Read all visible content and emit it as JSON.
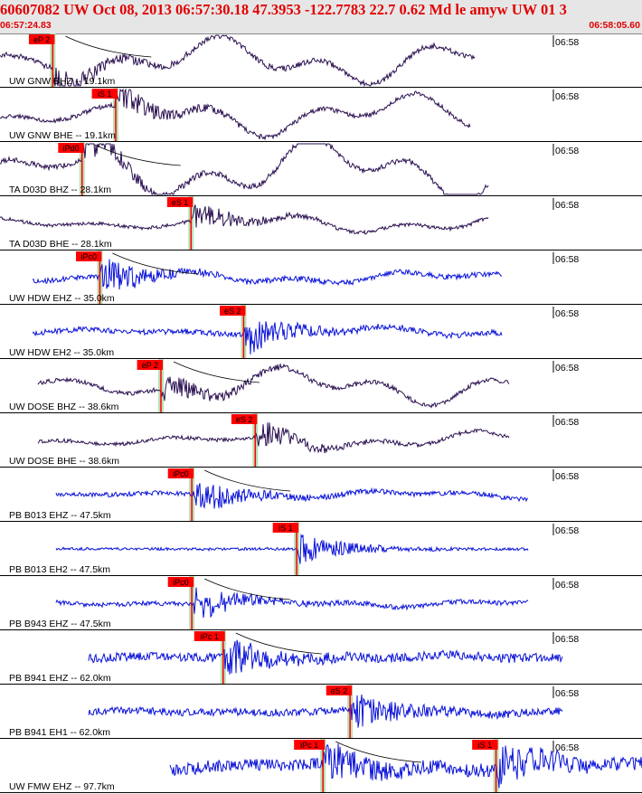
{
  "header": {
    "title": "60607082 UW Oct 08, 2013 06:57:30.18   47.3953 -122.7783 22.7 0.62 Md le amyw UW 01   3",
    "time_start": "06:57:24.83",
    "time_end": "06:58:05.60"
  },
  "chart_data": {
    "type": "line",
    "title": "60607082 UW Oct 08, 2013 06:57:30.18   47.3953 -122.7783 22.7 0.62 Md le amyw UW 01   3",
    "x_range": [
      "06:57:24.83",
      "06:58:05.60"
    ],
    "time_tick_label": "06:58",
    "grid": false,
    "colors": {
      "broadband": "#2a1050",
      "short_period": "#0a12d8",
      "pick_label": "#ff0000",
      "pick_band": "#b8e0b8",
      "travel_time_curve": "#000000"
    },
    "traces": [
      {
        "label": "UW GNW BHZ -- 19.1km",
        "station": "GNW",
        "network": "UW",
        "channel": "BHZ",
        "distance_km": 19.1,
        "type": "broadband",
        "picks": [
          {
            "label": "eP 2",
            "t": 3.35
          }
        ]
      },
      {
        "label": "UW GNW BHE -- 19.1km",
        "station": "GNW",
        "network": "UW",
        "channel": "BHE",
        "distance_km": 19.1,
        "type": "broadband",
        "picks": [
          {
            "label": "iS 1",
            "t": 7.35
          }
        ]
      },
      {
        "label": "TA D03D BHZ -- 28.1km",
        "station": "D03D",
        "network": "TA",
        "channel": "BHZ",
        "distance_km": 28.1,
        "type": "broadband",
        "picks": [
          {
            "label": "iPd0",
            "t": 5.21
          }
        ]
      },
      {
        "label": "TA D03D BHE -- 28.1km",
        "station": "D03D",
        "network": "TA",
        "channel": "BHE",
        "distance_km": 28.1,
        "type": "broadband",
        "picks": [
          {
            "label": "eS 1",
            "t": 12.13
          }
        ]
      },
      {
        "label": "UW HDW EHZ -- 35.0km",
        "station": "HDW",
        "network": "UW",
        "channel": "EHZ",
        "distance_km": 35.0,
        "type": "short_period",
        "picks": [
          {
            "label": "iPc0",
            "t": 6.34
          }
        ]
      },
      {
        "label": "UW HDW EH2 -- 35.0km",
        "station": "HDW",
        "network": "UW",
        "channel": "EH2",
        "distance_km": 35.0,
        "type": "short_period",
        "picks": [
          {
            "label": "eS 2",
            "t": 15.47
          }
        ]
      },
      {
        "label": "UW DOSE BHZ -- 38.6km",
        "station": "DOSE",
        "network": "UW",
        "channel": "BHZ",
        "distance_km": 38.6,
        "type": "broadband",
        "picks": [
          {
            "label": "eP 2",
            "t": 10.22
          }
        ]
      },
      {
        "label": "UW DOSE BHE -- 38.6km",
        "station": "DOSE",
        "network": "UW",
        "channel": "BHE",
        "distance_km": 38.6,
        "type": "broadband",
        "picks": [
          {
            "label": "eS 2",
            "t": 16.21
          }
        ]
      },
      {
        "label": "PB B013 EHZ -- 47.5km",
        "station": "B013",
        "network": "PB",
        "channel": "EHZ",
        "distance_km": 47.5,
        "type": "short_period",
        "picks": [
          {
            "label": "iPc0",
            "t": 12.18
          }
        ]
      },
      {
        "label": "PB B013 EH2 -- 47.5km",
        "station": "B013",
        "network": "PB",
        "channel": "EH2",
        "distance_km": 47.5,
        "type": "short_period",
        "picks": [
          {
            "label": "iS 1",
            "t": 18.84
          }
        ]
      },
      {
        "label": "PB B943 EHZ -- 47.5km",
        "station": "B943",
        "network": "PB",
        "channel": "EHZ",
        "distance_km": 47.5,
        "type": "short_period",
        "picks": [
          {
            "label": "iPc0",
            "t": 12.18
          }
        ]
      },
      {
        "label": "PB B941 EHZ -- 62.0km",
        "station": "B941",
        "network": "PB",
        "channel": "EHZ",
        "distance_km": 62.0,
        "type": "short_period",
        "picks": [
          {
            "label": "iPc 1",
            "t": 14.17
          }
        ]
      },
      {
        "label": "PB B941 EH1 -- 62.0km",
        "station": "B941",
        "network": "PB",
        "channel": "EH1",
        "distance_km": 62.0,
        "type": "short_period",
        "picks": [
          {
            "label": "eS 2",
            "t": 22.23
          }
        ]
      },
      {
        "label": "UW FMW EHZ -- 97.7km",
        "station": "FMW",
        "network": "UW",
        "channel": "EHZ",
        "distance_km": 97.7,
        "type": "short_period",
        "picks": [
          {
            "label": "iPc 1",
            "t": 20.51
          },
          {
            "label": "iS 1",
            "t": 31.5
          }
        ]
      }
    ]
  }
}
